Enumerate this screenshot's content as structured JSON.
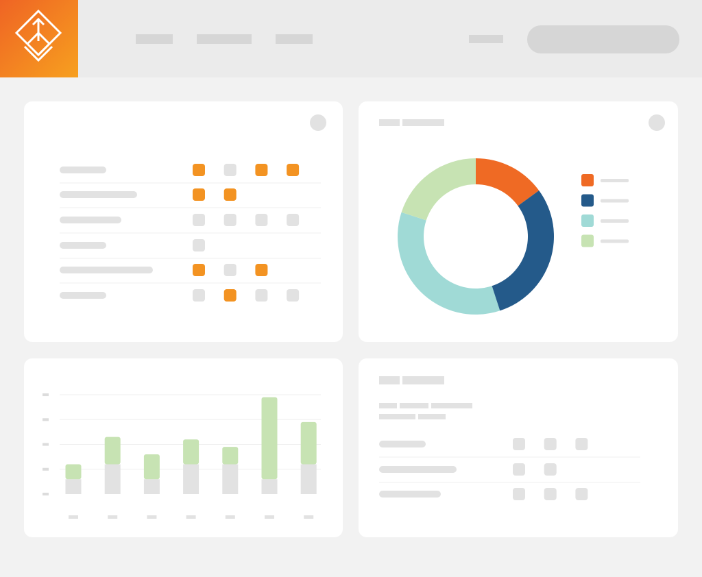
{
  "chart_data": [
    {
      "type": "pie",
      "values": [
        15,
        30,
        35,
        20
      ],
      "colors": [
        "#ef6a24",
        "#245a8a",
        "#a0dad6",
        "#c7e3b3"
      ],
      "donut": true
    },
    {
      "type": "bar",
      "categories": [
        null,
        null,
        null,
        null,
        null,
        null,
        null
      ],
      "series": [
        {
          "color": "#e2e2e2",
          "values": [
            0.6,
            1.2,
            0.6,
            1.2,
            1.2,
            0.6,
            1.2
          ]
        },
        {
          "color": "#c7e3b3",
          "values": [
            0.6,
            1.1,
            1.0,
            1.0,
            0.7,
            3.3,
            1.7
          ]
        }
      ],
      "ylim": [
        0,
        4.25
      ],
      "yticks": [
        0,
        1,
        2,
        3,
        4
      ],
      "grid": true,
      "stacked": true
    }
  ]
}
